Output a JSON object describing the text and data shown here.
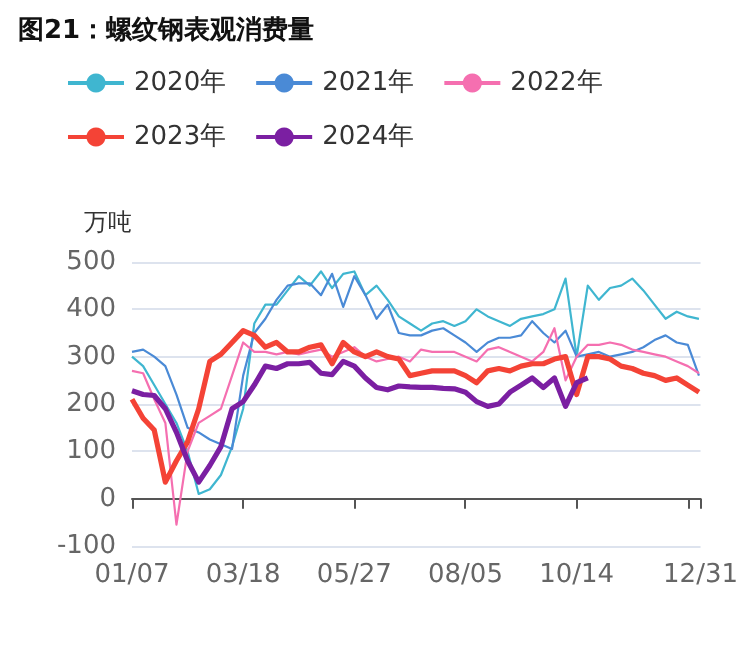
{
  "chart_data": {
    "type": "line",
    "title": "图21：螺纹钢表观消费量",
    "ylabel": "万吨",
    "x": [
      "--01-07",
      "--01-14",
      "--01-21",
      "--01-28",
      "--02-04",
      "--02-11",
      "--02-18",
      "--02-25",
      "--03-04",
      "--03-11",
      "--03-18",
      "--03-25",
      "--04-01",
      "--04-08",
      "--04-15",
      "--04-22",
      "--04-29",
      "--05-06",
      "--05-13",
      "--05-20",
      "--05-27",
      "--06-03",
      "--06-10",
      "--06-17",
      "--06-24",
      "--07-01",
      "--07-08",
      "--07-15",
      "--07-22",
      "--07-29",
      "--08-05",
      "--08-12",
      "--08-19",
      "--08-26",
      "--09-02",
      "--09-09",
      "--09-16",
      "--09-23",
      "--09-30",
      "--10-07",
      "--10-14",
      "--10-21",
      "--10-28",
      "--11-04",
      "--11-11",
      "--11-18",
      "--11-25",
      "--12-02",
      "--12-09",
      "--12-16",
      "--12-23",
      "--12-30"
    ],
    "series": [
      {
        "name": "2020年",
        "color": "#3fb6d0",
        "values": [
          300,
          280,
          240,
          200,
          160,
          100,
          10,
          20,
          50,
          110,
          190,
          370,
          410,
          410,
          440,
          470,
          450,
          480,
          445,
          475,
          480,
          430,
          450,
          420,
          385,
          370,
          355,
          370,
          375,
          365,
          375,
          400,
          385,
          375,
          365,
          380,
          385,
          390,
          400,
          465,
          300,
          450,
          420,
          445,
          450,
          465,
          440,
          410,
          380,
          395,
          385,
          380
        ]
      },
      {
        "name": "2021年",
        "color": "#4a8ad6",
        "values": [
          310,
          315,
          300,
          280,
          220,
          150,
          140,
          125,
          115,
          105,
          260,
          350,
          380,
          420,
          450,
          455,
          455,
          430,
          475,
          405,
          470,
          430,
          380,
          410,
          350,
          345,
          345,
          355,
          360,
          345,
          330,
          310,
          330,
          340,
          340,
          345,
          375,
          350,
          330,
          355,
          300,
          305,
          310,
          300,
          305,
          310,
          320,
          335,
          345,
          330,
          325,
          260
        ]
      },
      {
        "name": "2022年",
        "color": "#f56fb0",
        "values": [
          270,
          265,
          210,
          160,
          -55,
          100,
          160,
          175,
          190,
          260,
          330,
          310,
          310,
          305,
          310,
          305,
          310,
          315,
          300,
          310,
          320,
          300,
          290,
          295,
          300,
          290,
          315,
          310,
          310,
          310,
          300,
          290,
          315,
          320,
          310,
          300,
          290,
          310,
          360,
          250,
          300,
          325,
          325,
          330,
          325,
          315,
          310,
          305,
          300,
          290,
          280,
          265
        ]
      },
      {
        "name": "2023年",
        "color": "#f44336",
        "values": [
          210,
          170,
          145,
          35,
          80,
          120,
          190,
          290,
          305,
          330,
          355,
          345,
          320,
          330,
          310,
          310,
          320,
          325,
          285,
          330,
          310,
          300,
          310,
          300,
          295,
          260,
          265,
          270,
          270,
          270,
          260,
          245,
          270,
          275,
          270,
          280,
          285,
          285,
          295,
          300,
          220,
          300,
          300,
          295,
          280,
          275,
          265,
          260,
          250,
          255,
          240,
          225
        ]
      },
      {
        "name": "2024年",
        "color": "#7b1fa2",
        "values": [
          228,
          220,
          218,
          190,
          140,
          80,
          35,
          70,
          110,
          190,
          205,
          240,
          280,
          275,
          285,
          285,
          288,
          265,
          262,
          290,
          280,
          255,
          235,
          230,
          238,
          236,
          235,
          235,
          233,
          232,
          225,
          205,
          195,
          200,
          225,
          240,
          255,
          235,
          255,
          195,
          245,
          255,
          null,
          null,
          null,
          null,
          null,
          null,
          null,
          null,
          null,
          null
        ]
      }
    ],
    "xlim": [
      "--01-07",
      "--12-31"
    ],
    "xticks": [
      {
        "value": "--01-07",
        "label": "01/07"
      },
      {
        "value": "--03-18",
        "label": "03/18"
      },
      {
        "value": "--05-27",
        "label": "05/27"
      },
      {
        "value": "--08-05",
        "label": "08/05"
      },
      {
        "value": "--10-14",
        "label": "10/14"
      },
      {
        "value": "--12-23",
        "label": null
      },
      {
        "value": "--12-31",
        "label": "12/31"
      }
    ],
    "ylim": [
      -100,
      500
    ],
    "yticks": [
      -100,
      0,
      100,
      200,
      300,
      400,
      500
    ],
    "grid": "y",
    "legend": "top"
  }
}
